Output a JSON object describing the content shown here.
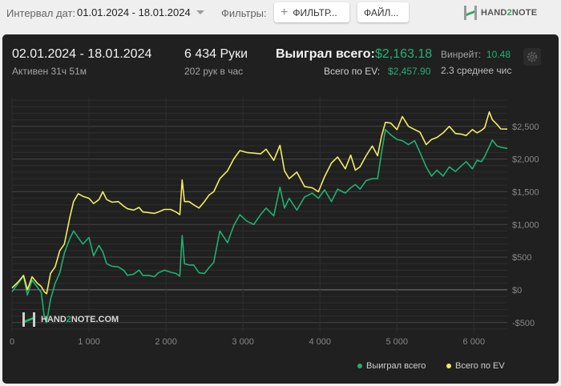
{
  "topbar": {
    "date_label": "Интервал дат:",
    "date_value": "01.01.2024 - 18.01.2024",
    "filters_label": "Фильтры:",
    "filters_button": "ФИЛЬТР...",
    "files_button": "ФАЙЛ...",
    "logo_text_pre": "HAND",
    "logo_text_two": "2",
    "logo_text_post": "NOTE"
  },
  "summary": {
    "range": "02.01.2024 - 18.01.2024",
    "active": "Активен 31ч 51м",
    "hands": "6 434 Руки",
    "hands_per_hour": "202 рук в час",
    "won_label": "Выиграл всего:",
    "won_value": "$2,163.18",
    "ev_label": "Всего по EV:",
    "ev_value": "$2,457.90",
    "winrate_label": "Винрейт:",
    "winrate_value": "10.48",
    "avg_text": "2.3 среднее чис"
  },
  "watermark": {
    "pre": "HAND",
    "two": "2",
    "post": "NOTE.COM"
  },
  "colors": {
    "won": "#1fb072",
    "ev": "#f0ee5e",
    "background": "#202020",
    "grid": "#3c3c3c"
  },
  "chart_data": {
    "type": "line",
    "xlim": [
      0,
      6434
    ],
    "ylim": [
      -650,
      2950
    ],
    "x_ticks": [
      0,
      1000,
      2000,
      3000,
      4000,
      5000,
      6000
    ],
    "x_tick_labels": [
      "0",
      "1 000",
      "2 000",
      "3 000",
      "4 000",
      "5 000",
      "6 000"
    ],
    "y_ticks": [
      -500,
      0,
      500,
      1000,
      1500,
      2000,
      2500
    ],
    "y_tick_labels": [
      "-$500",
      "$0",
      "$500",
      "$1,000",
      "$1,500",
      "$2,000",
      "$2,500"
    ],
    "series": [
      {
        "name": "Выиграл всего",
        "color": "#1fb072",
        "x": [
          0,
          80,
          150,
          200,
          260,
          330,
          380,
          420,
          450,
          500,
          560,
          620,
          680,
          750,
          800,
          860,
          920,
          1000,
          1060,
          1130,
          1180,
          1230,
          1300,
          1380,
          1450,
          1500,
          1580,
          1650,
          1700,
          1780,
          1850,
          1900,
          1980,
          2060,
          2130,
          2180,
          2210,
          2240,
          2300,
          2360,
          2430,
          2500,
          2560,
          2620,
          2700,
          2800,
          2880,
          2960,
          3050,
          3140,
          3230,
          3300,
          3400,
          3480,
          3540,
          3600,
          3700,
          3800,
          3900,
          3980,
          4060,
          4150,
          4230,
          4330,
          4400,
          4460,
          4520,
          4600,
          4680,
          4750,
          4800,
          4850,
          4920,
          5000,
          5070,
          5150,
          5230,
          5300,
          5380,
          5450,
          5520,
          5600,
          5680,
          5760,
          5840,
          5900,
          5980,
          6040,
          6100,
          6140,
          6200,
          6240,
          6300,
          6350,
          6434
        ],
        "y": [
          -30,
          100,
          210,
          -80,
          150,
          40,
          -40,
          -420,
          -500,
          -150,
          100,
          260,
          560,
          780,
          900,
          800,
          700,
          800,
          520,
          680,
          580,
          400,
          360,
          350,
          300,
          220,
          240,
          300,
          220,
          220,
          200,
          260,
          300,
          270,
          250,
          210,
          830,
          400,
          380,
          380,
          260,
          250,
          340,
          420,
          900,
          720,
          980,
          1150,
          1050,
          1000,
          1150,
          1250,
          1130,
          1570,
          1250,
          1400,
          1220,
          1420,
          1480,
          1400,
          1530,
          1350,
          1540,
          1480,
          1560,
          1610,
          1540,
          1670,
          1700,
          1700,
          2100,
          2450,
          2370,
          2300,
          2280,
          2220,
          2280,
          2100,
          1880,
          1740,
          1830,
          1740,
          1880,
          1810,
          1900,
          1960,
          1850,
          1980,
          1960,
          2040,
          2190,
          2290,
          2200,
          2180,
          2163
        ]
      },
      {
        "name": "Всего по EV",
        "color": "#f0ee5e",
        "x": [
          0,
          80,
          150,
          200,
          260,
          330,
          380,
          420,
          450,
          500,
          560,
          620,
          680,
          750,
          800,
          860,
          920,
          1000,
          1060,
          1130,
          1180,
          1230,
          1300,
          1380,
          1450,
          1500,
          1580,
          1650,
          1700,
          1780,
          1850,
          1900,
          1980,
          2060,
          2130,
          2180,
          2210,
          2240,
          2300,
          2360,
          2430,
          2500,
          2560,
          2620,
          2700,
          2800,
          2880,
          2960,
          3050,
          3140,
          3230,
          3300,
          3400,
          3480,
          3540,
          3600,
          3700,
          3800,
          3900,
          3980,
          4060,
          4150,
          4230,
          4330,
          4400,
          4460,
          4520,
          4600,
          4680,
          4750,
          4800,
          4850,
          4920,
          5000,
          5070,
          5150,
          5230,
          5300,
          5380,
          5450,
          5520,
          5600,
          5680,
          5760,
          5840,
          5900,
          5980,
          6040,
          6100,
          6140,
          6200,
          6240,
          6300,
          6350,
          6434
        ],
        "y": [
          30,
          120,
          220,
          0,
          200,
          100,
          50,
          -30,
          -60,
          250,
          350,
          600,
          700,
          1100,
          1350,
          1470,
          1430,
          1400,
          1320,
          1380,
          1500,
          1380,
          1340,
          1350,
          1280,
          1240,
          1220,
          1260,
          1190,
          1180,
          1170,
          1190,
          1230,
          1230,
          1190,
          1150,
          1680,
          1350,
          1350,
          1300,
          1250,
          1350,
          1450,
          1500,
          1700,
          1820,
          2000,
          2130,
          2100,
          2090,
          2080,
          2150,
          1980,
          2210,
          1820,
          1700,
          1800,
          1580,
          1560,
          1500,
          1730,
          1940,
          2030,
          1850,
          2060,
          1830,
          1880,
          2050,
          2200,
          2050,
          2350,
          2560,
          2550,
          2450,
          2650,
          2500,
          2450,
          2410,
          2220,
          2300,
          2330,
          2400,
          2500,
          2390,
          2380,
          2360,
          2450,
          2400,
          2440,
          2480,
          2720,
          2600,
          2530,
          2460,
          2458
        ]
      }
    ],
    "grid": true,
    "legend_position": "bottom-right"
  }
}
